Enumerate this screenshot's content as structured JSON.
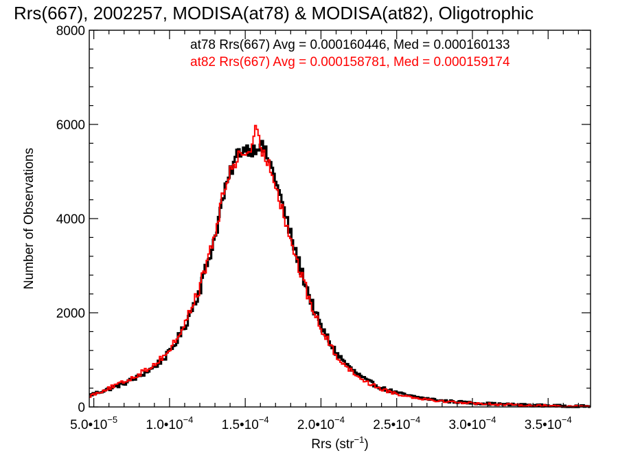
{
  "chart_data": {
    "type": "histogram",
    "title": "Rrs(667), 2002257, MODISA(at78) & MODISA(at82), Oligotrophic",
    "xlabel": {
      "base": "Rrs (str",
      "sup": "−1",
      "close": ")"
    },
    "ylabel": "Number of Observations",
    "xlim": [
      4.7e-05,
      0.000378
    ],
    "ylim": [
      0,
      8000
    ],
    "x_ticks": [
      {
        "value": 5e-05,
        "mantissa": "5.0•10",
        "exp": "−5"
      },
      {
        "value": 0.0001,
        "mantissa": "1.0•10",
        "exp": "−4"
      },
      {
        "value": 0.00015,
        "mantissa": "1.5•10",
        "exp": "−4"
      },
      {
        "value": 0.0002,
        "mantissa": "2.0•10",
        "exp": "−4"
      },
      {
        "value": 0.00025,
        "mantissa": "2.5•10",
        "exp": "−4"
      },
      {
        "value": 0.0003,
        "mantissa": "3.0•10",
        "exp": "−4"
      },
      {
        "value": 0.00035,
        "mantissa": "3.5•10",
        "exp": "−4"
      }
    ],
    "y_ticks": [
      {
        "value": 0,
        "label": "0"
      },
      {
        "value": 2000,
        "label": "2000"
      },
      {
        "value": 4000,
        "label": "4000"
      },
      {
        "value": 6000,
        "label": "6000"
      },
      {
        "value": 8000,
        "label": "8000"
      }
    ],
    "legend": [
      {
        "text": "at78 Rrs(667) Avg = 0.000160446, Med = 0.000160133",
        "color": "#000000"
      },
      {
        "text": "at82 Rrs(667) Avg = 0.000158781, Med = 0.000159174",
        "color": "#ff0000"
      }
    ],
    "series": [
      {
        "name": "at78",
        "color": "#000000",
        "points": [
          [
            4.7e-05,
            250
          ],
          [
            6e-05,
            380
          ],
          [
            7e-05,
            500
          ],
          [
            8e-05,
            650
          ],
          [
            9e-05,
            850
          ],
          [
            0.0001,
            1150
          ],
          [
            0.00011,
            1700
          ],
          [
            0.00012,
            2500
          ],
          [
            0.00013,
            3600
          ],
          [
            0.000135,
            4400
          ],
          [
            0.00014,
            4950
          ],
          [
            0.000145,
            5400
          ],
          [
            0.00015,
            5500
          ],
          [
            0.000155,
            5450
          ],
          [
            0.00016,
            5600
          ],
          [
            0.000165,
            5300
          ],
          [
            0.00017,
            4850
          ],
          [
            0.000175,
            4250
          ],
          [
            0.00018,
            3650
          ],
          [
            0.000185,
            3100
          ],
          [
            0.00019,
            2600
          ],
          [
            0.000195,
            2100
          ],
          [
            0.0002,
            1700
          ],
          [
            0.00021,
            1150
          ],
          [
            0.00022,
            800
          ],
          [
            0.00023,
            560
          ],
          [
            0.00024,
            400
          ],
          [
            0.00025,
            300
          ],
          [
            0.00026,
            220
          ],
          [
            0.00028,
            130
          ],
          [
            0.0003,
            85
          ],
          [
            0.00032,
            55
          ],
          [
            0.00034,
            35
          ],
          [
            0.00036,
            20
          ],
          [
            0.000378,
            12
          ]
        ]
      },
      {
        "name": "at82",
        "color": "#ff0000",
        "points": [
          [
            4.7e-05,
            230
          ],
          [
            6e-05,
            400
          ],
          [
            7e-05,
            530
          ],
          [
            8e-05,
            700
          ],
          [
            9e-05,
            900
          ],
          [
            0.0001,
            1200
          ],
          [
            0.00011,
            1750
          ],
          [
            0.00012,
            2550
          ],
          [
            0.00013,
            3650
          ],
          [
            0.000135,
            4450
          ],
          [
            0.00014,
            5000
          ],
          [
            0.000145,
            5300
          ],
          [
            0.00015,
            5400
          ],
          [
            0.000155,
            5500
          ],
          [
            0.000157,
            5900
          ],
          [
            0.00016,
            5500
          ],
          [
            0.000165,
            5200
          ],
          [
            0.00017,
            4750
          ],
          [
            0.000175,
            4150
          ],
          [
            0.00018,
            3550
          ],
          [
            0.000185,
            3000
          ],
          [
            0.00019,
            2500
          ],
          [
            0.000195,
            2050
          ],
          [
            0.0002,
            1650
          ],
          [
            0.00021,
            1100
          ],
          [
            0.00022,
            760
          ],
          [
            0.00023,
            530
          ],
          [
            0.00024,
            380
          ],
          [
            0.00025,
            280
          ],
          [
            0.00026,
            210
          ],
          [
            0.00028,
            120
          ],
          [
            0.0003,
            80
          ],
          [
            0.00032,
            50
          ],
          [
            0.00034,
            30
          ],
          [
            0.00036,
            18
          ],
          [
            0.000378,
            10
          ]
        ]
      }
    ],
    "bin_count": 300,
    "grid": false
  }
}
